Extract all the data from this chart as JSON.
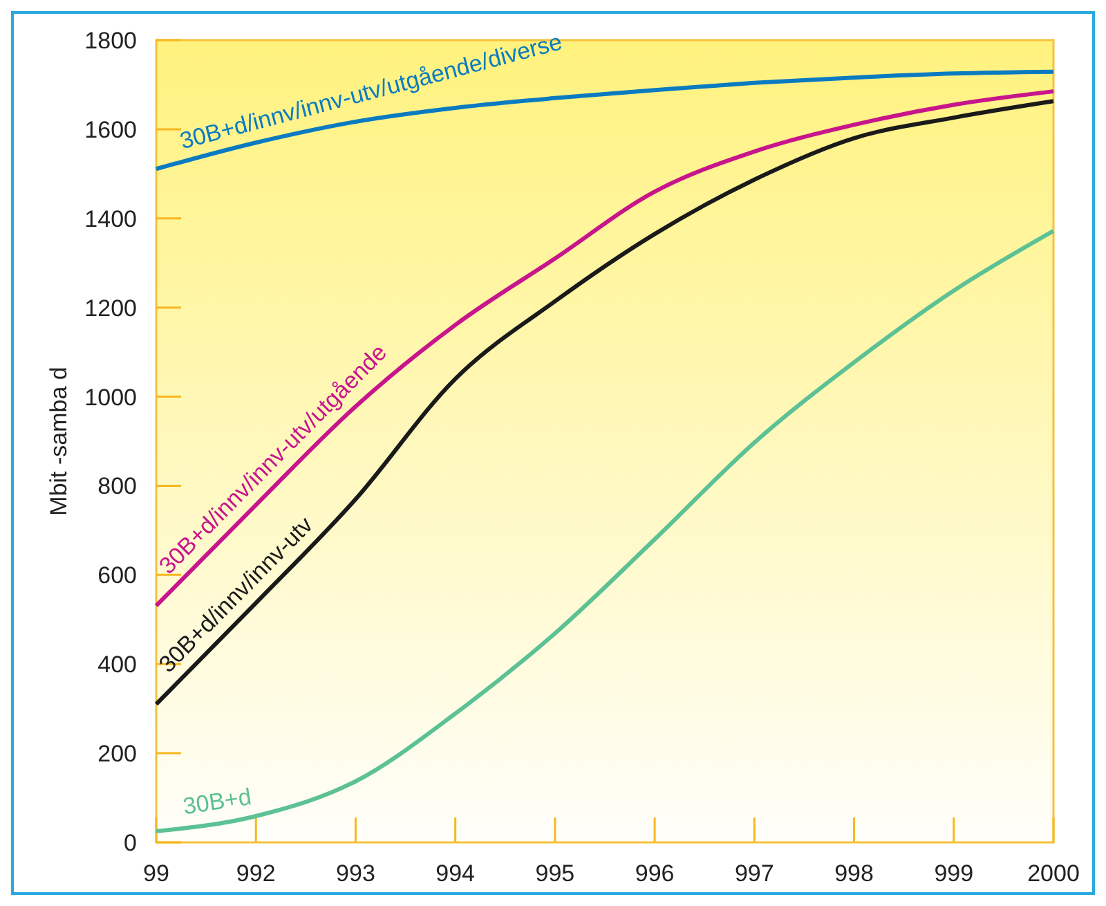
{
  "chart_data": {
    "type": "line",
    "ylabel": "Mbit -samba d",
    "categories": [
      "99",
      "992",
      "993",
      "994",
      "995",
      "996",
      "997",
      "998",
      "999",
      "2000"
    ],
    "ylim": [
      0,
      1800
    ],
    "yticks": [
      0,
      200,
      400,
      600,
      800,
      1000,
      1200,
      1400,
      1600,
      1800
    ],
    "series": [
      {
        "name": "30B+d/innv/innv-utv/utgående/diverse",
        "color": "#0a7bc1",
        "values": [
          1511,
          1570,
          1617,
          1648,
          1670,
          1688,
          1704,
          1716,
          1725,
          1729
        ]
      },
      {
        "name": "30B+d/innv/innv-utv/utgående",
        "color": "#c8158c",
        "values": [
          531,
          757,
          978,
          1161,
          1310,
          1460,
          1550,
          1610,
          1655,
          1685
        ]
      },
      {
        "name": "30B+d/innv/innv-utv",
        "color": "#1a1a1a",
        "values": [
          310,
          537,
          770,
          1040,
          1214,
          1365,
          1487,
          1580,
          1626,
          1663
        ]
      },
      {
        "name": "30B+d",
        "color": "#5cc194",
        "values": [
          25,
          59,
          137,
          289,
          469,
          680,
          897,
          1077,
          1238,
          1372
        ]
      }
    ],
    "grid": false,
    "legend": false,
    "marker": "none",
    "line_style": "solid"
  }
}
